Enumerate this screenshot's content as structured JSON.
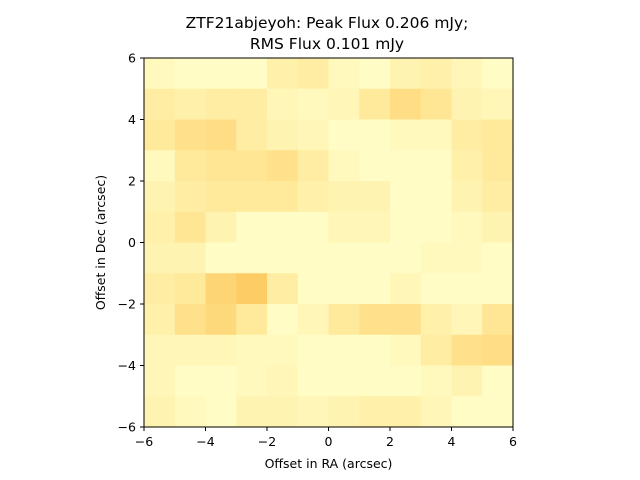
{
  "chart_data": {
    "type": "heatmap",
    "title_line1": "ZTF21abjeyoh: Peak Flux 0.206 mJy;",
    "title_line2": "RMS Flux 0.101 mJy",
    "xlabel": "Offset in RA (arcsec)",
    "ylabel": "Offset in Dec (arcsec)",
    "xlim": [
      -6,
      6
    ],
    "ylim": [
      -6,
      6
    ],
    "xticks": [
      -6,
      -4,
      -2,
      0,
      2,
      4,
      6
    ],
    "yticks": [
      -6,
      -4,
      -2,
      0,
      2,
      4,
      6
    ],
    "grid": false,
    "colormap": "YlOrBr (pale yellow to orange)",
    "value_scale": "relative intensity 0-1",
    "rows_top_to_bottom": [
      [
        0.1,
        0.05,
        0.05,
        0.05,
        0.25,
        0.3,
        0.1,
        0.05,
        0.2,
        0.25,
        0.15,
        0.05
      ],
      [
        0.3,
        0.25,
        0.3,
        0.3,
        0.15,
        0.1,
        0.15,
        0.35,
        0.5,
        0.4,
        0.2,
        0.15
      ],
      [
        0.35,
        0.45,
        0.5,
        0.3,
        0.2,
        0.15,
        0.05,
        0.05,
        0.1,
        0.1,
        0.3,
        0.35
      ],
      [
        0.1,
        0.35,
        0.4,
        0.4,
        0.45,
        0.3,
        0.1,
        0.05,
        0.05,
        0.05,
        0.25,
        0.35
      ],
      [
        0.2,
        0.3,
        0.35,
        0.35,
        0.35,
        0.25,
        0.2,
        0.2,
        0.05,
        0.05,
        0.2,
        0.3
      ],
      [
        0.25,
        0.4,
        0.2,
        0.05,
        0.05,
        0.05,
        0.15,
        0.15,
        0.05,
        0.05,
        0.1,
        0.2
      ],
      [
        0.2,
        0.2,
        0.05,
        0.05,
        0.05,
        0.05,
        0.05,
        0.05,
        0.05,
        0.1,
        0.1,
        0.05
      ],
      [
        0.3,
        0.35,
        0.6,
        0.7,
        0.3,
        0.05,
        0.05,
        0.05,
        0.15,
        0.05,
        0.05,
        0.05
      ],
      [
        0.25,
        0.45,
        0.55,
        0.35,
        0.05,
        0.15,
        0.35,
        0.45,
        0.45,
        0.25,
        0.15,
        0.4
      ],
      [
        0.15,
        0.15,
        0.15,
        0.1,
        0.1,
        0.05,
        0.05,
        0.05,
        0.1,
        0.3,
        0.45,
        0.5
      ],
      [
        0.15,
        0.05,
        0.05,
        0.1,
        0.15,
        0.05,
        0.05,
        0.05,
        0.05,
        0.1,
        0.2,
        0.05
      ],
      [
        0.2,
        0.1,
        0.05,
        0.2,
        0.2,
        0.15,
        0.2,
        0.25,
        0.25,
        0.15,
        0.05,
        0.05
      ]
    ]
  }
}
